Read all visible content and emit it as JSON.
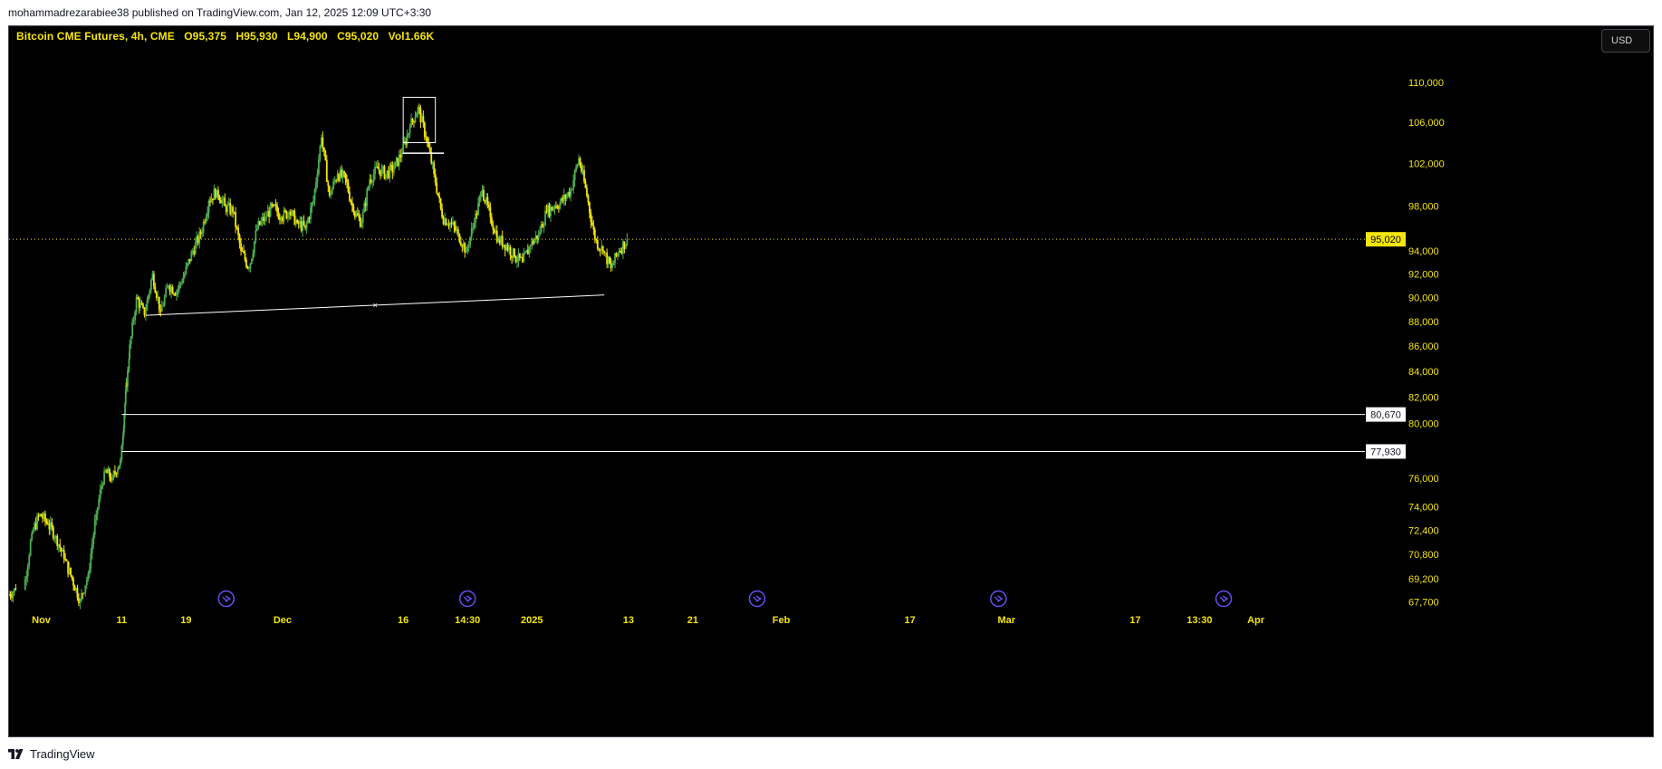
{
  "header": {
    "published_text": "mohammadrezarabiee38 published on TradingView.com, Jan 12, 2025 12:09 UTC+3:30"
  },
  "legend": {
    "symbol": "Bitcoin CME Futures, 4h, CME",
    "open": "O95,375",
    "high": "H95,930",
    "low": "L94,900",
    "close": "C95,020",
    "volume": "Vol1.66K"
  },
  "currency": {
    "label": "USD"
  },
  "footer": {
    "brand": "TradingView"
  },
  "colors": {
    "background": "#000000",
    "up_candle": "#4caf50",
    "down_candle": "#f5e50a",
    "axis_text": "#f5e50a",
    "drawing_line": "#ffffff",
    "price_line": "#f5e50a",
    "event_marker": "#6b4cf0"
  },
  "chart_data": {
    "type": "candlestick",
    "timeframe": "4h",
    "y_axis": {
      "scale": "log",
      "ylim": [
        67000,
        114000
      ],
      "tick_labels": [
        {
          "value": 110000,
          "label": "110,000"
        },
        {
          "value": 106000,
          "label": "106,000"
        },
        {
          "value": 102000,
          "label": "102,000"
        },
        {
          "value": 98000,
          "label": "98,000"
        },
        {
          "value": 94000,
          "label": "94,000"
        },
        {
          "value": 92000,
          "label": "92,000"
        },
        {
          "value": 90000,
          "label": "90,000"
        },
        {
          "value": 88000,
          "label": "88,000"
        },
        {
          "value": 86000,
          "label": "86,000"
        },
        {
          "value": 84000,
          "label": "84,000"
        },
        {
          "value": 82000,
          "label": "82,000"
        },
        {
          "value": 80000,
          "label": "80,000"
        },
        {
          "value": 76000,
          "label": "76,000"
        },
        {
          "value": 74000,
          "label": "74,000"
        },
        {
          "value": 72400,
          "label": "72,400"
        },
        {
          "value": 70800,
          "label": "70,800"
        },
        {
          "value": 69200,
          "label": "69,200"
        },
        {
          "value": 67700,
          "label": "67,700"
        }
      ]
    },
    "x_axis": {
      "date_range": [
        "2024-10-28",
        "2025-04-14"
      ],
      "tick_labels": [
        {
          "date": "2024-11-01",
          "label": "Nov"
        },
        {
          "date": "2024-11-11",
          "label": "11"
        },
        {
          "date": "2024-11-19",
          "label": "19"
        },
        {
          "date": "2024-12-01",
          "label": "Dec"
        },
        {
          "date": "2024-12-16",
          "label": "16"
        },
        {
          "date": "2024-12-24",
          "label": "14:30"
        },
        {
          "date": "2025-01-01",
          "label": "2025"
        },
        {
          "date": "2025-01-13",
          "label": "13"
        },
        {
          "date": "2025-01-21",
          "label": "21"
        },
        {
          "date": "2025-02-01",
          "label": "Feb"
        },
        {
          "date": "2025-02-17",
          "label": "17"
        },
        {
          "date": "2025-03-01",
          "label": "Mar"
        },
        {
          "date": "2025-03-17",
          "label": "17"
        },
        {
          "date": "2025-03-25",
          "label": "13:30"
        },
        {
          "date": "2025-04-01",
          "label": "Apr"
        }
      ]
    },
    "last_price": {
      "value": 95020,
      "label": "95,020"
    },
    "horizontal_levels": [
      {
        "value": 80670,
        "label": "80,670",
        "start": "2024-11-11"
      },
      {
        "value": 77930,
        "label": "77,930",
        "start": "2024-11-11"
      }
    ],
    "trendline": {
      "start": {
        "date": "2024-11-14",
        "price": 88500
      },
      "end": {
        "date": "2025-01-10",
        "price": 90200
      }
    },
    "boxes": [
      {
        "start": "2024-12-16",
        "end": "2024-12-20",
        "price_low": 104000,
        "price_high": 108500
      },
      {
        "start": "2024-12-16",
        "end": "2024-12-21",
        "price_low": 103000,
        "price_high": 103000
      }
    ],
    "event_markers": [
      "2024-11-24",
      "2024-12-24",
      "2025-01-29",
      "2025-02-28",
      "2025-03-28"
    ],
    "series": [
      {
        "date": "2024-10-28",
        "close": 68500
      },
      {
        "date": "2024-10-30",
        "close": 72200
      },
      {
        "date": "2024-10-31",
        "close": 73500
      },
      {
        "date": "2024-11-01",
        "close": 72800
      },
      {
        "date": "2024-11-02",
        "close": 72000
      },
      {
        "date": "2024-11-03",
        "close": 70500
      },
      {
        "date": "2024-11-04",
        "close": 69200
      },
      {
        "date": "2024-11-05",
        "close": 67800
      },
      {
        "date": "2024-11-06",
        "close": 69500
      },
      {
        "date": "2024-11-07",
        "close": 73500
      },
      {
        "date": "2024-11-08",
        "close": 76500
      },
      {
        "date": "2024-11-09",
        "close": 76000
      },
      {
        "date": "2024-11-10",
        "close": 77300
      },
      {
        "date": "2024-11-11",
        "close": 81500
      },
      {
        "date": "2024-11-11",
        "close": 85000
      },
      {
        "date": "2024-11-12",
        "close": 90000
      },
      {
        "date": "2024-11-13",
        "close": 88500
      },
      {
        "date": "2024-11-14",
        "close": 92000
      },
      {
        "date": "2024-11-15",
        "close": 88800
      },
      {
        "date": "2024-11-16",
        "close": 91000
      },
      {
        "date": "2024-11-17",
        "close": 90500
      },
      {
        "date": "2024-11-18",
        "close": 92000
      },
      {
        "date": "2024-11-19",
        "close": 94000
      },
      {
        "date": "2024-11-20",
        "close": 95500
      },
      {
        "date": "2024-11-21",
        "close": 98500
      },
      {
        "date": "2024-11-22",
        "close": 99500
      },
      {
        "date": "2024-11-23",
        "close": 98000
      },
      {
        "date": "2024-11-24",
        "close": 97500
      },
      {
        "date": "2024-11-25",
        "close": 94000
      },
      {
        "date": "2024-11-26",
        "close": 92500
      },
      {
        "date": "2024-11-27",
        "close": 96000
      },
      {
        "date": "2024-11-28",
        "close": 97000
      },
      {
        "date": "2024-11-29",
        "close": 98000
      },
      {
        "date": "2024-11-30",
        "close": 97000
      },
      {
        "date": "2024-12-01",
        "close": 97500
      },
      {
        "date": "2024-12-02",
        "close": 96500
      },
      {
        "date": "2024-12-03",
        "close": 96000
      },
      {
        "date": "2024-12-04",
        "close": 98500
      },
      {
        "date": "2024-12-05",
        "close": 104500
      },
      {
        "date": "2024-12-06",
        "close": 99000
      },
      {
        "date": "2024-12-07",
        "close": 101000
      },
      {
        "date": "2024-12-08",
        "close": 100500
      },
      {
        "date": "2024-12-09",
        "close": 97500
      },
      {
        "date": "2024-12-10",
        "close": 96500
      },
      {
        "date": "2024-12-11",
        "close": 100500
      },
      {
        "date": "2024-12-12",
        "close": 101500
      },
      {
        "date": "2024-12-13",
        "close": 101000
      },
      {
        "date": "2024-12-14",
        "close": 101500
      },
      {
        "date": "2024-12-15",
        "close": 103000
      },
      {
        "date": "2024-12-16",
        "close": 105500
      },
      {
        "date": "2024-12-17",
        "close": 107500
      },
      {
        "date": "2024-12-18",
        "close": 104500
      },
      {
        "date": "2024-12-19",
        "close": 101000
      },
      {
        "date": "2024-12-20",
        "close": 97000
      },
      {
        "date": "2024-12-21",
        "close": 96500
      },
      {
        "date": "2024-12-22",
        "close": 95500
      },
      {
        "date": "2024-12-23",
        "close": 94000
      },
      {
        "date": "2024-12-24",
        "close": 96500
      },
      {
        "date": "2024-12-25",
        "close": 99500
      },
      {
        "date": "2024-12-26",
        "close": 97000
      },
      {
        "date": "2024-12-27",
        "close": 95000
      },
      {
        "date": "2024-12-28",
        "close": 94500
      },
      {
        "date": "2024-12-29",
        "close": 93500
      },
      {
        "date": "2024-12-30",
        "close": 93000
      },
      {
        "date": "2024-12-31",
        "close": 94500
      },
      {
        "date": "2025-01-01",
        "close": 95500
      },
      {
        "date": "2025-01-02",
        "close": 97500
      },
      {
        "date": "2025-01-03",
        "close": 98000
      },
      {
        "date": "2025-01-04",
        "close": 98500
      },
      {
        "date": "2025-01-05",
        "close": 99500
      },
      {
        "date": "2025-01-06",
        "close": 102500
      },
      {
        "date": "2025-01-07",
        "close": 99000
      },
      {
        "date": "2025-01-08",
        "close": 95000
      },
      {
        "date": "2025-01-09",
        "close": 94000
      },
      {
        "date": "2025-01-10",
        "close": 92500
      },
      {
        "date": "2025-01-11",
        "close": 94000
      },
      {
        "date": "2025-01-12",
        "close": 95020
      }
    ]
  }
}
